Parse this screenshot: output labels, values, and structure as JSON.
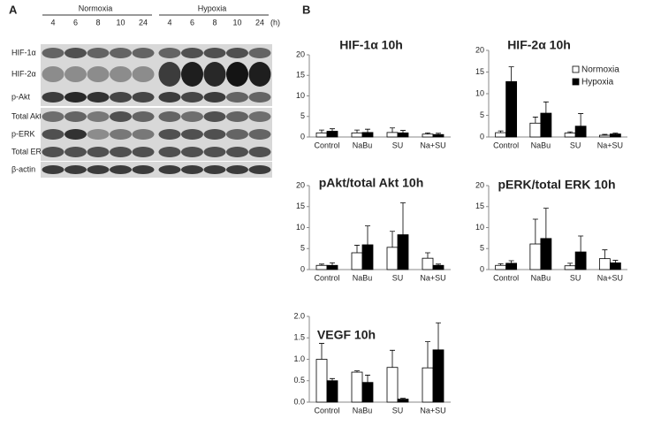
{
  "blot": {
    "panel_label": "A",
    "unit": "(h)",
    "groups": [
      {
        "label": "Normoxia",
        "times": [
          "4",
          "6",
          "8",
          "10",
          "24"
        ]
      },
      {
        "label": "Hypoxia",
        "times": [
          "4",
          "6",
          "8",
          "10",
          "24"
        ]
      }
    ],
    "rows": [
      "HIF-1α",
      "HIF-2α",
      "p-Akt",
      "Total Akt",
      "p-ERK",
      "Total ERK",
      "β-actin"
    ]
  },
  "panel_b_label": "B",
  "chart_data": [
    {
      "type": "bar",
      "title": "HIF-1α  10h",
      "categories": [
        "Control",
        "NaBu",
        "SU",
        "Na+SU"
      ],
      "series": [
        {
          "color": "#ffffff",
          "values": [
            1.0,
            1.0,
            1.1,
            0.7
          ],
          "errors": [
            0.7,
            0.7,
            1.1,
            0.3
          ]
        },
        {
          "color": "#000000",
          "values": [
            1.4,
            1.1,
            1.0,
            0.6
          ],
          "errors": [
            0.6,
            0.8,
            0.6,
            0.3
          ]
        }
      ],
      "ylim": [
        0,
        20
      ],
      "yticks": [
        0,
        5,
        10,
        15,
        20
      ]
    },
    {
      "type": "bar",
      "title": "HIF-2α 10h",
      "categories": [
        "Control",
        "NaBu",
        "SU",
        "Na+SU"
      ],
      "legend": "upper right",
      "series": [
        {
          "name": "Normoxia",
          "color": "#ffffff",
          "values": [
            1.0,
            3.2,
            0.9,
            0.4
          ],
          "errors": [
            0.4,
            1.4,
            0.3,
            0.2
          ]
        },
        {
          "name": "Hypoxia",
          "color": "#000000",
          "values": [
            12.8,
            5.5,
            2.5,
            0.7
          ],
          "errors": [
            3.4,
            2.6,
            2.9,
            0.2
          ]
        }
      ],
      "ylim": [
        0,
        20
      ],
      "yticks": [
        0,
        5,
        10,
        15,
        20
      ]
    },
    {
      "type": "bar",
      "title": "pAkt/total Akt 10h",
      "categories": [
        "Control",
        "NaBu",
        "SU",
        "Na+SU"
      ],
      "series": [
        {
          "color": "#ffffff",
          "values": [
            1.0,
            4.0,
            5.3,
            2.7
          ],
          "errors": [
            0.3,
            1.8,
            3.8,
            1.3
          ]
        },
        {
          "color": "#000000",
          "values": [
            1.0,
            5.9,
            8.3,
            1.0
          ],
          "errors": [
            0.6,
            4.5,
            7.6,
            0.3
          ]
        }
      ],
      "ylim": [
        0,
        20
      ],
      "yticks": [
        0,
        5,
        10,
        15,
        20
      ]
    },
    {
      "type": "bar",
      "title": "pERK/total ERK 10h",
      "categories": [
        "Control",
        "NaBu",
        "SU",
        "Na+SU"
      ],
      "series": [
        {
          "color": "#ffffff",
          "values": [
            1.0,
            6.1,
            0.9,
            2.6
          ],
          "errors": [
            0.4,
            5.9,
            0.6,
            2.1
          ]
        },
        {
          "color": "#000000",
          "values": [
            1.5,
            7.4,
            4.2,
            1.6
          ],
          "errors": [
            0.6,
            7.2,
            3.8,
            0.6
          ]
        }
      ],
      "ylim": [
        0,
        20
      ],
      "yticks": [
        0,
        5,
        10,
        15,
        20
      ]
    },
    {
      "type": "bar",
      "title": "VEGF 10h",
      "categories": [
        "Control",
        "NaBu",
        "SU",
        "Na+SU"
      ],
      "series": [
        {
          "color": "#ffffff",
          "values": [
            1.0,
            0.7,
            0.81,
            0.8
          ],
          "errors": [
            0.37,
            0.03,
            0.4,
            0.61
          ]
        },
        {
          "color": "#000000",
          "values": [
            0.5,
            0.46,
            0.07,
            1.22
          ],
          "errors": [
            0.05,
            0.17,
            0.02,
            0.63
          ]
        }
      ],
      "ylim": [
        0,
        2.0
      ],
      "yticks": [
        {
          "value": 0,
          "label": "0.0"
        },
        {
          "value": 0.5,
          "label": "0.5"
        },
        {
          "value": 1.0,
          "label": "1.0"
        },
        {
          "value": 1.5,
          "label": "1.5"
        },
        {
          "value": 2.0,
          "label": "2.0"
        }
      ]
    }
  ]
}
